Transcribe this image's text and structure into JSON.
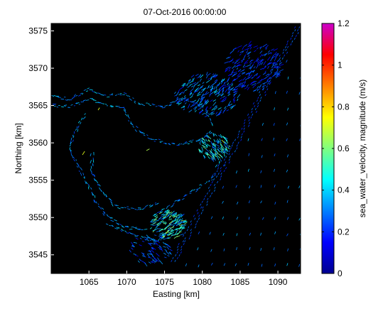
{
  "chart_data": {
    "type": "heatmap",
    "title": "07-Oct-2016 00:00:00",
    "xlabel": "Easting [km]",
    "ylabel": "Northing [km]",
    "xlim": [
      1060,
      1093
    ],
    "ylim": [
      3542.5,
      3576
    ],
    "xticks": [
      1065,
      1070,
      1075,
      1080,
      1085,
      1090
    ],
    "yticks": [
      3545,
      3550,
      3555,
      3560,
      3565,
      3570,
      3575
    ],
    "colorbar": {
      "label": "sea_water_velocity, magnitude (m/s)",
      "range": [
        0,
        1.2
      ],
      "ticks": [
        "0",
        "0.2",
        "0.4",
        "0.6",
        "0.8",
        "1",
        "1.2"
      ],
      "colormap": "jet"
    },
    "background_color": "#000000",
    "grid": false
  }
}
